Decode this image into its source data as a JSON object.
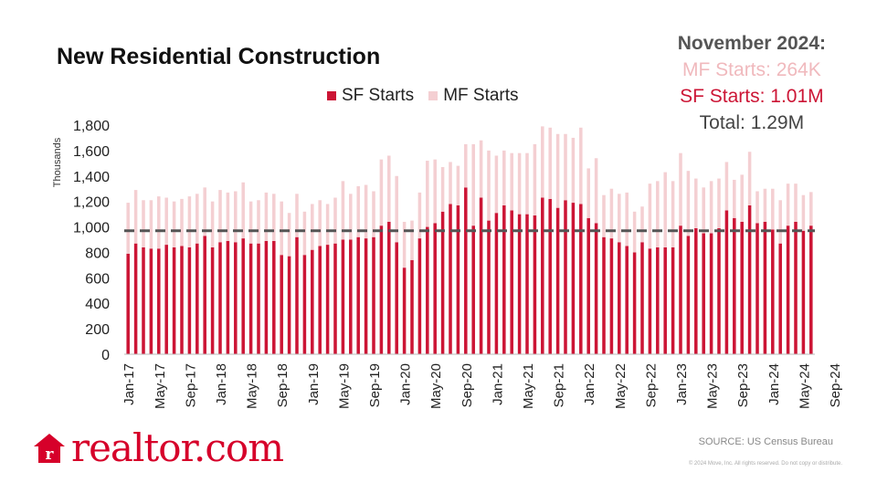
{
  "title": "New Residential Construction",
  "legend": {
    "sf": "SF Starts",
    "mf": "MF Starts"
  },
  "callout": {
    "date": "November 2024:",
    "mf": "MF Starts: 264K",
    "sf": "SF Starts:  1.01M",
    "total": "Total:  1.29M"
  },
  "source": "SOURCE: US Census Bureau",
  "copyright": "© 2024 Move, Inc. All rights reserved. Do not copy or distribute.",
  "logo": {
    "text": "realtor.com",
    "icon": "house-r-icon"
  },
  "colors": {
    "sf": "#cc1535",
    "mf": "#f4cfd2",
    "average_line": "#555555"
  },
  "chart_data": {
    "type": "bar",
    "stacked": true,
    "ylabel": "Thousands",
    "ylim": [
      0,
      1800
    ],
    "yticks": [
      0,
      200,
      400,
      600,
      800,
      1000,
      1200,
      1400,
      1600,
      1800
    ],
    "xtick_labels": [
      "Jan-17",
      "May-17",
      "Sep-17",
      "Jan-18",
      "May-18",
      "Sep-18",
      "Jan-19",
      "May-19",
      "Sep-19",
      "Jan-20",
      "May-20",
      "Sep-20",
      "Jan-21",
      "May-21",
      "Sep-21",
      "Jan-22",
      "May-22",
      "Sep-22",
      "Jan-23",
      "May-23",
      "Sep-23",
      "Jan-24",
      "May-24",
      "Sep-24"
    ],
    "reference_line": {
      "style": "dashed",
      "value": 970
    },
    "series": [
      {
        "name": "SF Starts",
        "values": [
          790,
          870,
          840,
          830,
          830,
          860,
          840,
          850,
          840,
          870,
          930,
          840,
          880,
          890,
          880,
          910,
          870,
          870,
          890,
          890,
          780,
          770,
          920,
          780,
          820,
          850,
          860,
          870,
          900,
          900,
          920,
          910,
          920,
          1010,
          1040,
          880,
          680,
          740,
          910,
          1000,
          1030,
          1120,
          1180,
          1170,
          1310,
          1010,
          1230,
          1050,
          1110,
          1170,
          1130,
          1100,
          1100,
          1090,
          1230,
          1220,
          1150,
          1210,
          1190,
          1180,
          1070,
          1030,
          920,
          910,
          880,
          850,
          800,
          880,
          830,
          840,
          840,
          840,
          1010,
          930,
          990,
          950,
          950,
          990,
          1130,
          1070,
          1040,
          1170,
          1030,
          1040,
          980,
          870,
          1010,
          1040,
          970,
          1010
        ]
      },
      {
        "name": "MF Starts",
        "values": [
          400,
          420,
          370,
          380,
          410,
          370,
          360,
          370,
          400,
          390,
          380,
          360,
          410,
          380,
          400,
          440,
          330,
          340,
          380,
          370,
          420,
          340,
          340,
          340,
          360,
          360,
          320,
          360,
          460,
          360,
          400,
          420,
          360,
          520,
          520,
          520,
          360,
          310,
          360,
          520,
          500,
          350,
          330,
          310,
          340,
          640,
          450,
          550,
          450,
          430,
          450,
          480,
          480,
          560,
          560,
          560,
          580,
          520,
          510,
          600,
          390,
          510,
          330,
          390,
          380,
          420,
          320,
          280,
          510,
          520,
          590,
          520,
          570,
          510,
          390,
          360,
          410,
          390,
          380,
          300,
          370,
          420,
          250,
          260,
          320,
          340,
          330,
          300,
          280,
          264
        ]
      }
    ]
  }
}
